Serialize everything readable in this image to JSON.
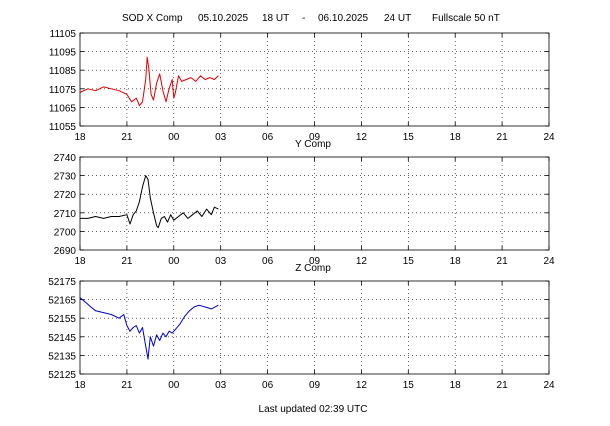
{
  "header": {
    "station": "SOD X Comp",
    "start_date": "05.10.2025",
    "start_time": "18 UT",
    "separator": "-",
    "end_date": "06.10.2025",
    "end_time": "24 UT",
    "fullscale": "Fullscale 50 nT"
  },
  "footer": {
    "last_updated": "Last updated  02:39 UTC"
  },
  "x_tick_labels": [
    "18",
    "21",
    "00",
    "03",
    "06",
    "09",
    "12",
    "15",
    "18",
    "21",
    "24"
  ],
  "chart_data": [
    {
      "type": "line",
      "title": "",
      "xlabel": "",
      "ylabel": "",
      "xlim": [
        0,
        30
      ],
      "ylim": [
        11055,
        11105
      ],
      "yticks": [
        11055,
        11065,
        11075,
        11085,
        11095,
        11105
      ],
      "grid": true,
      "color": "#e00000",
      "series": [
        {
          "x": [
            0,
            0.5,
            1,
            1.5,
            2,
            2.5,
            3,
            3.3,
            3.6,
            3.8,
            4.0,
            4.2,
            4.3,
            4.4,
            4.55,
            4.7,
            4.9,
            5.1,
            5.3,
            5.5,
            5.7,
            5.9,
            6.0,
            6.1,
            6.3,
            6.5,
            6.8,
            7.1,
            7.4,
            7.7,
            8.0,
            8.3,
            8.6,
            8.85
          ],
          "y": [
            11073,
            11075,
            11074,
            11076,
            11075,
            11074,
            11072,
            11068,
            11070,
            11066,
            11068,
            11080,
            11092,
            11086,
            11072,
            11069,
            11078,
            11083,
            11074,
            11068,
            11075,
            11080,
            11070,
            11073,
            11082,
            11079,
            11080,
            11081,
            11079,
            11082,
            11080,
            11081,
            11080,
            11082
          ]
        }
      ]
    },
    {
      "type": "line",
      "title": "Y Comp",
      "xlabel": "",
      "ylabel": "",
      "xlim": [
        0,
        30
      ],
      "ylim": [
        2690,
        2740
      ],
      "yticks": [
        2690,
        2700,
        2710,
        2720,
        2730,
        2740
      ],
      "grid": true,
      "color": "#000000",
      "series": [
        {
          "x": [
            0,
            0.5,
            1,
            1.5,
            2,
            2.5,
            3,
            3.2,
            3.4,
            3.6,
            3.8,
            4.0,
            4.2,
            4.35,
            4.5,
            4.7,
            4.9,
            5.0,
            5.2,
            5.4,
            5.6,
            5.8,
            6.0,
            6.3,
            6.6,
            6.9,
            7.2,
            7.5,
            7.8,
            8.1,
            8.4,
            8.6,
            8.85
          ],
          "y": [
            2707,
            2707,
            2708,
            2707,
            2708,
            2708,
            2709,
            2704,
            2709,
            2711,
            2716,
            2724,
            2730,
            2728,
            2718,
            2710,
            2703,
            2702,
            2707,
            2708,
            2705,
            2709,
            2706,
            2708,
            2710,
            2707,
            2709,
            2711,
            2708,
            2712,
            2709,
            2713,
            2712
          ]
        }
      ]
    },
    {
      "type": "line",
      "title": "Z Comp",
      "xlabel": "",
      "ylabel": "",
      "xlim": [
        0,
        30
      ],
      "ylim": [
        52125,
        52175
      ],
      "yticks": [
        52125,
        52135,
        52145,
        52155,
        52165,
        52175
      ],
      "grid": true,
      "color": "#0000cc",
      "series": [
        {
          "x": [
            0,
            0.3,
            0.7,
            1,
            1.5,
            2,
            2.5,
            2.8,
            3.0,
            3.2,
            3.4,
            3.6,
            3.8,
            4.0,
            4.2,
            4.35,
            4.5,
            4.7,
            4.9,
            5.1,
            5.3,
            5.5,
            5.7,
            5.9,
            6.1,
            6.4,
            6.7,
            7.0,
            7.3,
            7.6,
            8.0,
            8.4,
            8.85
          ],
          "y": [
            52166,
            52164,
            52161,
            52159,
            52158,
            52157,
            52155,
            52157,
            52151,
            52148,
            52150,
            52151,
            52147,
            52150,
            52140,
            52133,
            52145,
            52140,
            52146,
            52143,
            52147,
            52145,
            52148,
            52147,
            52149,
            52152,
            52156,
            52159,
            52161,
            52162,
            52161,
            52160,
            52162
          ]
        }
      ]
    }
  ]
}
